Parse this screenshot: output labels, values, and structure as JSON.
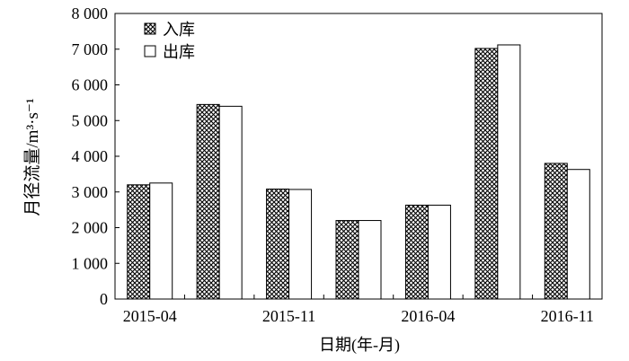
{
  "chart_data": {
    "type": "bar",
    "categories": [
      "2015-04",
      "",
      "2015-11",
      "",
      "2016-04",
      "",
      "2016-11"
    ],
    "series": [
      {
        "name": "入库",
        "values": [
          3200,
          5450,
          3080,
          2200,
          2630,
          7020,
          3800
        ],
        "pattern": "crosshatch"
      },
      {
        "name": "出库",
        "values": [
          3250,
          5400,
          3070,
          2200,
          2630,
          7120,
          3630
        ],
        "pattern": "none"
      }
    ],
    "xlabel": "日期(年-月)",
    "ylabel": "月径流量/m³·s⁻¹",
    "ylim": [
      0,
      8000
    ],
    "yticks": [
      0,
      1000,
      2000,
      3000,
      4000,
      5000,
      6000,
      7000,
      8000
    ],
    "ytick_labels": [
      "0",
      "1 000",
      "2 000",
      "3 000",
      "4 000",
      "5 000",
      "6 000",
      "7 000",
      "8 000"
    ],
    "xtick_labels": [
      "2015-04",
      "2015-11",
      "2016-04",
      "2016-11"
    ],
    "legend_position": "top-left",
    "grid": false
  }
}
